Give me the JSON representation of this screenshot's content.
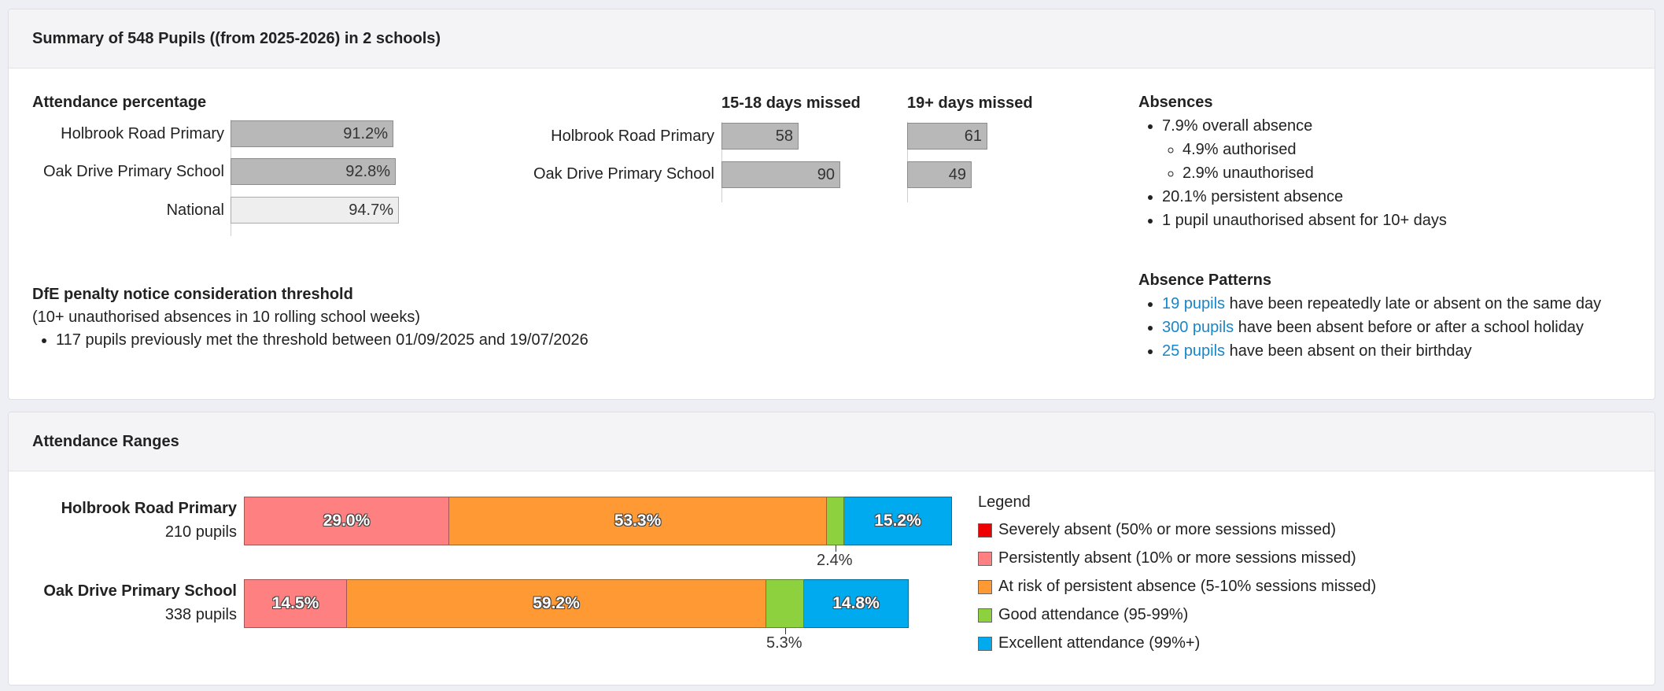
{
  "summary": {
    "title": "Summary of 548 Pupils ((from 2025-2026) in 2 schools)",
    "attendance": {
      "heading": "Attendance percentage",
      "rows": [
        {
          "label": "Holbrook Road Primary",
          "value": "91.2%",
          "pct": 91.2
        },
        {
          "label": "Oak Drive Primary School",
          "value": "92.8%",
          "pct": 92.8
        },
        {
          "label": "National",
          "value": "94.7%",
          "pct": 94.7
        }
      ]
    },
    "missed": {
      "heading_a": "15-18 days missed",
      "heading_b": "19+ days missed",
      "rows": [
        {
          "label": "Holbrook Road Primary",
          "a": "58",
          "b": "61"
        },
        {
          "label": "Oak Drive Primary School",
          "a": "90",
          "b": "49"
        }
      ]
    },
    "absences": {
      "heading": "Absences",
      "overall": "7.9% overall absence",
      "authorised": "4.9% authorised",
      "unauthorised": "2.9% unauthorised",
      "persistent": "20.1% persistent absence",
      "unauth10": "1 pupil unauthorised absent for 10+ days"
    },
    "penalty": {
      "heading": "DfE penalty notice consideration threshold",
      "subtitle": "(10+ unauthorised absences in 10 rolling school weeks)",
      "item": "117 pupils previously met the threshold between 01/09/2025 and 19/07/2026"
    },
    "patterns": {
      "heading": "Absence Patterns",
      "items": [
        {
          "link": "19 pupils",
          "text": " have been repeatedly late or absent on the same day"
        },
        {
          "link": "300 pupils",
          "text": " have been absent before or after a school holiday"
        },
        {
          "link": "25 pupils",
          "text": " have been absent on their birthday"
        }
      ]
    }
  },
  "ranges": {
    "title": "Attendance Ranges",
    "schools": [
      {
        "name": "Holbrook Road Primary",
        "pupils": "210 pupils",
        "segments": [
          {
            "key": "persistent",
            "pct": 29.0,
            "label": "29.0%"
          },
          {
            "key": "risk",
            "pct": 53.3,
            "label": "53.3%"
          },
          {
            "key": "good",
            "pct": 2.4,
            "label": "2.4%",
            "below": true
          },
          {
            "key": "excellent",
            "pct": 15.2,
            "label": "15.2%"
          }
        ]
      },
      {
        "name": "Oak Drive Primary School",
        "pupils": "338 pupils",
        "segments": [
          {
            "key": "persistent",
            "pct": 14.5,
            "label": "14.5%"
          },
          {
            "key": "risk",
            "pct": 59.2,
            "label": "59.2%"
          },
          {
            "key": "good",
            "pct": 5.3,
            "label": "5.3%",
            "below": true
          },
          {
            "key": "excellent",
            "pct": 14.8,
            "label": "14.8%"
          }
        ]
      }
    ],
    "legend": {
      "title": "Legend",
      "items": [
        {
          "key": "severe",
          "label": "Severely absent (50% or more sessions missed)",
          "color": "#ee0000"
        },
        {
          "key": "persistent",
          "label": "Persistently absent (10% or more sessions missed)",
          "color": "#ff8080"
        },
        {
          "key": "risk",
          "label": "At risk of persistent absence (5-10% sessions missed)",
          "color": "#ff9933"
        },
        {
          "key": "good",
          "label": "Good attendance (95-99%)",
          "color": "#8ed13f"
        },
        {
          "key": "excellent",
          "label": "Excellent attendance (99%+)",
          "color": "#00aaee"
        }
      ]
    }
  }
}
